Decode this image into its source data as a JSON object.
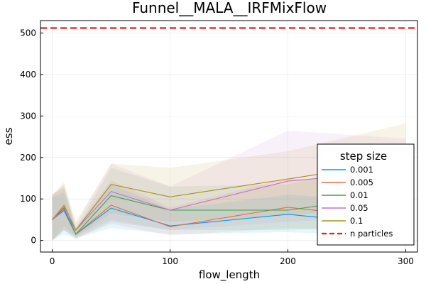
{
  "chart_data": {
    "type": "line",
    "title": "Funnel__MALA__IRFMixFlow",
    "xlabel": "flow_length",
    "ylabel": "ess",
    "xlim": [
      -10,
      310
    ],
    "ylim": [
      -28,
      530
    ],
    "xticks": [
      0,
      100,
      200,
      300
    ],
    "yticks": [
      0,
      100,
      200,
      300,
      400,
      500
    ],
    "grid": true,
    "legend_title": "step size",
    "legend_position": "bottom-right",
    "x": [
      0,
      10,
      20,
      50,
      100,
      200,
      300
    ],
    "series": [
      {
        "name": "0.001",
        "color": "#009af9",
        "values": [
          50,
          72,
          15,
          78,
          35,
          63,
          35
        ],
        "lower": [
          0,
          15,
          5,
          30,
          15,
          20,
          10
        ],
        "upper": [
          105,
          115,
          28,
          135,
          75,
          110,
          95
        ]
      },
      {
        "name": "0.005",
        "color": "#e26f46",
        "values": [
          50,
          80,
          15,
          85,
          33,
          80,
          48
        ],
        "lower": [
          0,
          25,
          5,
          40,
          12,
          30,
          15
        ],
        "upper": [
          110,
          130,
          30,
          145,
          80,
          150,
          130
        ]
      },
      {
        "name": "0.01",
        "color": "#3da44d",
        "values": [
          50,
          78,
          15,
          108,
          73,
          73,
          113
        ],
        "lower": [
          0,
          25,
          5,
          45,
          25,
          25,
          40
        ],
        "upper": [
          110,
          135,
          30,
          175,
          130,
          135,
          210
        ]
      },
      {
        "name": "0.05",
        "color": "#c271d2",
        "values": [
          50,
          75,
          25,
          118,
          73,
          143,
          168
        ],
        "lower": [
          0,
          25,
          10,
          50,
          25,
          45,
          60
        ],
        "upper": [
          110,
          125,
          40,
          185,
          130,
          265,
          245
        ]
      },
      {
        "name": "0.1",
        "color": "#ac8d18",
        "values": [
          50,
          85,
          25,
          135,
          105,
          148,
          193
        ],
        "lower": [
          0,
          35,
          10,
          65,
          45,
          60,
          90
        ],
        "upper": [
          110,
          140,
          45,
          185,
          175,
          215,
          282
        ]
      }
    ],
    "hline": {
      "name": "n particles",
      "value": 512,
      "color": "#e41a1c",
      "style": "dashed"
    }
  }
}
